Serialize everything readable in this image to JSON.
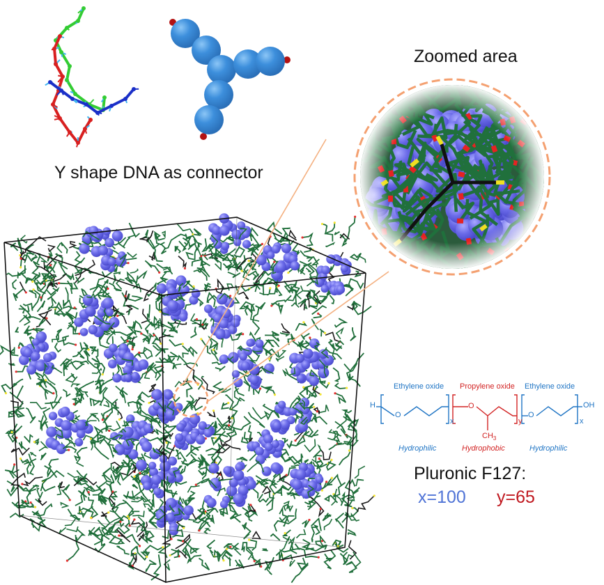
{
  "captions": {
    "dna_connector": "Y shape DNA as connector",
    "zoomed_area": "Zoomed area"
  },
  "formula": {
    "blocks": [
      {
        "name": "Ethylene oxide",
        "role": "Hydrophilic",
        "subscript": "x"
      },
      {
        "name": "Propylene oxide",
        "role": "Hydrophobic",
        "subscript": "y"
      },
      {
        "name": "Ethylene oxide",
        "role": "Hydrophilic",
        "subscript": "x"
      }
    ],
    "left_end": "H",
    "right_end": "OH",
    "oxygen": "O",
    "methyl": "CH",
    "methyl_sub": "3"
  },
  "pluronic": {
    "title": "Pluronic F127:",
    "x_label": "x=100",
    "y_label": "y=65"
  },
  "colors": {
    "peo": "#1e74c4",
    "ppo": "#d22323",
    "polymer_green": "#1f6e3a",
    "micelle": "#6666ee",
    "dna_red": "#d82020",
    "dna_blue": "#1a2fc8",
    "dna_green": "#33cc33",
    "bead": "#3d8fdc",
    "zoom_outline": "#f4a070"
  }
}
